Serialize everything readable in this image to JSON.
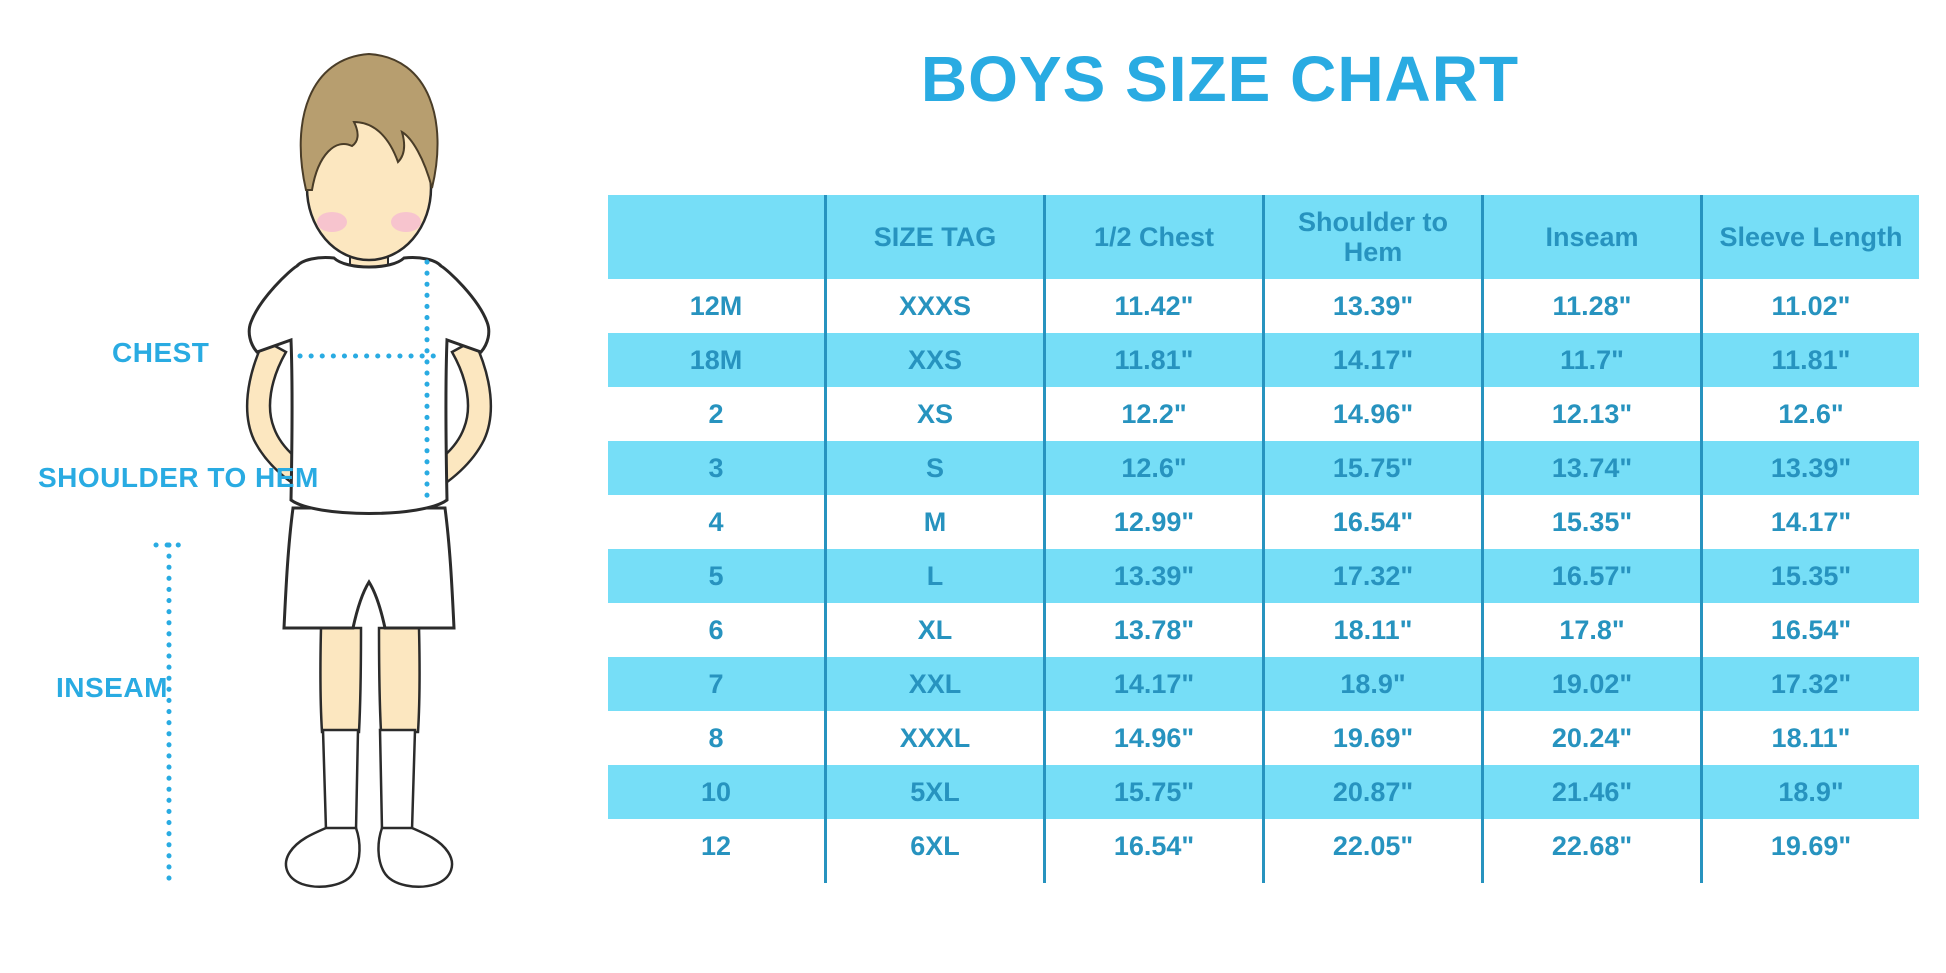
{
  "title": "BOYS SIZE CHART",
  "colors": {
    "title_blue": "#29ABE2",
    "band_cyan": "#76DEF7",
    "table_text_blue": "#2793BF",
    "divider_blue": "#2793BF",
    "dotted_line_blue": "#29ABE2",
    "skin": "#FCE7C0",
    "hair": "#B79E6F",
    "cheek": "#F7C4CE"
  },
  "diagram": {
    "labels": [
      {
        "id": "chest",
        "text": "CHEST"
      },
      {
        "id": "shoulder-to-hem",
        "text": "SHOULDER TO HEM"
      },
      {
        "id": "inseam",
        "text": "INSEAM"
      }
    ]
  },
  "chart_data": {
    "type": "table",
    "title": "BOYS SIZE CHART",
    "columns": [
      "",
      "SIZE TAG",
      "1/2 Chest",
      "Shoulder to Hem",
      "Inseam",
      "Sleeve Length"
    ],
    "rows": [
      [
        "12M",
        "XXXS",
        "11.42\"",
        "13.39\"",
        "11.28\"",
        "11.02\""
      ],
      [
        "18M",
        "XXS",
        "11.81\"",
        "14.17\"",
        "11.7\"",
        "11.81\""
      ],
      [
        "2",
        "XS",
        "12.2\"",
        "14.96\"",
        "12.13\"",
        "12.6\""
      ],
      [
        "3",
        "S",
        "12.6\"",
        "15.75\"",
        "13.74\"",
        "13.39\""
      ],
      [
        "4",
        "M",
        "12.99\"",
        "16.54\"",
        "15.35\"",
        "14.17\""
      ],
      [
        "5",
        "L",
        "13.39\"",
        "17.32\"",
        "16.57\"",
        "15.35\""
      ],
      [
        "6",
        "XL",
        "13.78\"",
        "18.11\"",
        "17.8\"",
        "16.54\""
      ],
      [
        "7",
        "XXL",
        "14.17\"",
        "18.9\"",
        "19.02\"",
        "17.32\""
      ],
      [
        "8",
        "XXXL",
        "14.96\"",
        "19.69\"",
        "20.24\"",
        "18.11\""
      ],
      [
        "10",
        "5XL",
        "15.75\"",
        "20.87\"",
        "21.46\"",
        "18.9\""
      ],
      [
        "12",
        "6XL",
        "16.54\"",
        "22.05\"",
        "22.68\"",
        "19.69\""
      ]
    ]
  }
}
